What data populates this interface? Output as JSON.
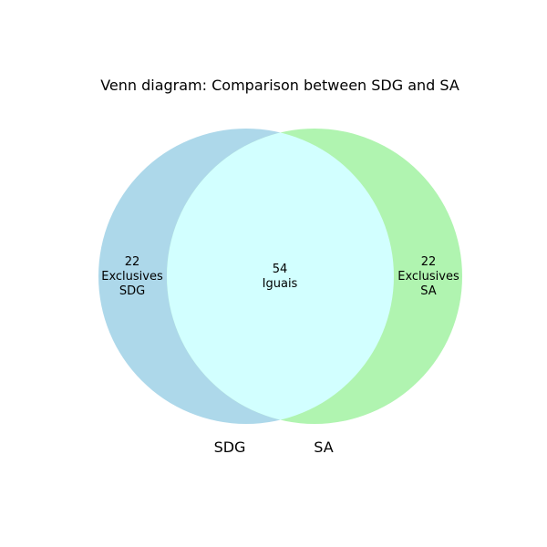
{
  "diagram": {
    "title": "Venn diagram: Comparison between SDG and SA",
    "sets": [
      {
        "name": "SDG",
        "color": "#add8ea",
        "region": {
          "count": "22",
          "line1": "Exclusives",
          "line2": "SDG"
        }
      },
      {
        "name": "SA",
        "color": "#b0f4b0",
        "region": {
          "count": "22",
          "line1": "Exclusives",
          "line2": "SA"
        }
      }
    ],
    "intersection": {
      "color": "#d2ffff",
      "count": "54",
      "label": "Iguais"
    }
  }
}
